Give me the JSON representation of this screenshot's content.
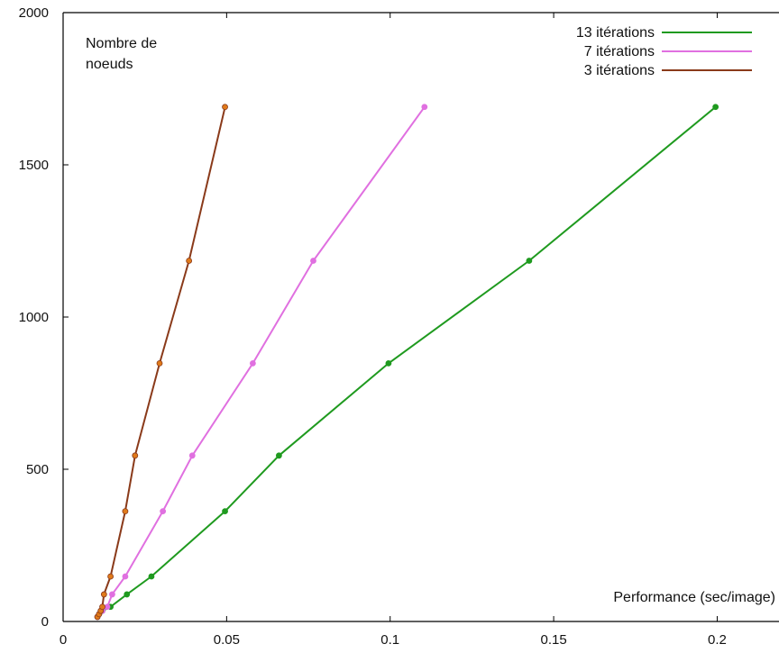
{
  "chart_data": {
    "type": "line",
    "title": "",
    "ylabel": "Nombre de\nnoeuds",
    "ylabel_lines": [
      "Nombre de",
      "noeuds"
    ],
    "xlabel": "Performance (sec/image)",
    "xlim": [
      0,
      0.22
    ],
    "ylim": [
      0,
      2000
    ],
    "x_ticks": [
      0,
      0.05,
      0.1,
      0.15,
      0.2
    ],
    "x_tick_labels": [
      "0",
      "0.05",
      "0.1",
      "0.15",
      "0.2"
    ],
    "y_ticks": [
      0,
      500,
      1000,
      1500,
      2000
    ],
    "y_tick_labels": [
      "0",
      "500",
      "1000",
      "1500",
      "2000"
    ],
    "grid": false,
    "legend_position": "top-right",
    "series": [
      {
        "name": "13 itérations",
        "color": "#1f9a1f",
        "points": [
          [
            0.0105,
            15
          ],
          [
            0.011,
            24
          ],
          [
            0.012,
            35
          ],
          [
            0.0145,
            48
          ],
          [
            0.0195,
            89
          ],
          [
            0.027,
            148
          ],
          [
            0.0495,
            362
          ],
          [
            0.066,
            545
          ],
          [
            0.0995,
            848
          ],
          [
            0.1425,
            1185
          ],
          [
            0.1995,
            1690
          ]
        ]
      },
      {
        "name": "7 itérations",
        "color": "#e070e0",
        "points": [
          [
            0.0105,
            15
          ],
          [
            0.011,
            24
          ],
          [
            0.012,
            35
          ],
          [
            0.0135,
            48
          ],
          [
            0.015,
            89
          ],
          [
            0.019,
            148
          ],
          [
            0.0305,
            362
          ],
          [
            0.0395,
            545
          ],
          [
            0.058,
            848
          ],
          [
            0.0765,
            1185
          ],
          [
            0.1105,
            1690
          ]
        ]
      },
      {
        "name": "3 itérations",
        "color": "#8a3a1a",
        "markerColor": "#e07a1a",
        "points": [
          [
            0.0105,
            15
          ],
          [
            0.011,
            24
          ],
          [
            0.0115,
            35
          ],
          [
            0.012,
            48
          ],
          [
            0.0125,
            89
          ],
          [
            0.0145,
            148
          ],
          [
            0.019,
            362
          ],
          [
            0.022,
            545
          ],
          [
            0.0295,
            848
          ],
          [
            0.0385,
            1185
          ],
          [
            0.0495,
            1690
          ]
        ]
      }
    ]
  }
}
